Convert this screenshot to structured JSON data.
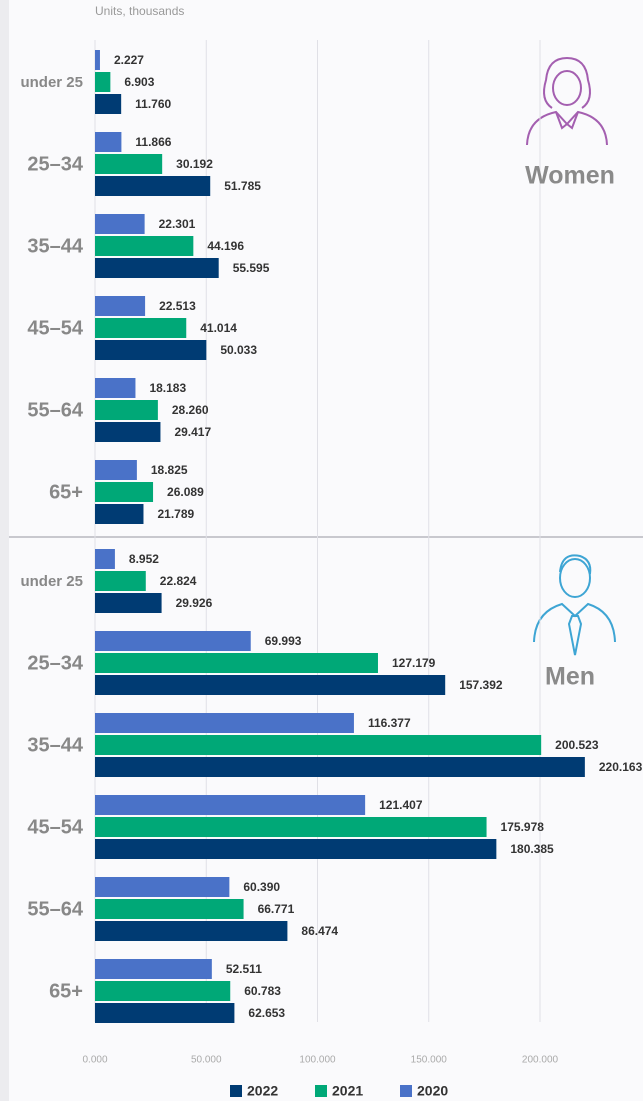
{
  "chart_data": {
    "type": "bar",
    "orientation": "horizontal",
    "axis_label": "Units, thousands",
    "xlim": [
      0,
      240
    ],
    "xticks": [
      {
        "value": 0,
        "label": "0.000"
      },
      {
        "value": 50,
        "label": "50.000"
      },
      {
        "value": 100,
        "label": "100.000"
      },
      {
        "value": 150,
        "label": "150.000"
      },
      {
        "value": 200,
        "label": "200.000"
      }
    ],
    "grid": true,
    "legend": "bottom",
    "series": [
      {
        "name": "2022",
        "color": "#003b73"
      },
      {
        "name": "2021",
        "color": "#00a877"
      },
      {
        "name": "2020",
        "color": "#4a72c8"
      }
    ],
    "panels": [
      {
        "title": "Women",
        "categories": [
          "under 25",
          "25–34",
          "35–44",
          "45–54",
          "55–64",
          "65+"
        ],
        "values": [
          [
            11.76,
            51.785,
            55.595,
            50.033,
            29.417,
            21.789
          ],
          [
            6.903,
            30.192,
            44.196,
            41.014,
            28.26,
            26.089
          ],
          [
            2.227,
            11.866,
            22.301,
            22.513,
            18.183,
            18.825
          ]
        ],
        "value_labels": [
          [
            "11.760",
            "51.785",
            "55.595",
            "50.033",
            "29.417",
            "21.789"
          ],
          [
            "6.903",
            "30.192",
            "44.196",
            "41.014",
            "28.260",
            "26.089"
          ],
          [
            "2.227",
            "11.866",
            "22.301",
            "22.513",
            "18.183",
            "18.825"
          ]
        ]
      },
      {
        "title": "Men",
        "categories": [
          "under 25",
          "25–34",
          "35–44",
          "45–54",
          "55–64",
          "65+"
        ],
        "values": [
          [
            29.926,
            157.392,
            220.163,
            180.385,
            86.474,
            62.653
          ],
          [
            22.824,
            127.179,
            200.523,
            175.978,
            66.771,
            60.783
          ],
          [
            8.952,
            69.993,
            116.377,
            121.407,
            60.39,
            52.511
          ]
        ],
        "value_labels": [
          [
            "29.926",
            "157.392",
            "220.163",
            "180.385",
            "86.474",
            "62.653"
          ],
          [
            "22.824",
            "127.179",
            "200.523",
            "175.978",
            "66.771",
            "60.783"
          ],
          [
            "8.952",
            "69.993",
            "116.377",
            "121.407",
            "60.390",
            "52.511"
          ]
        ]
      }
    ]
  }
}
